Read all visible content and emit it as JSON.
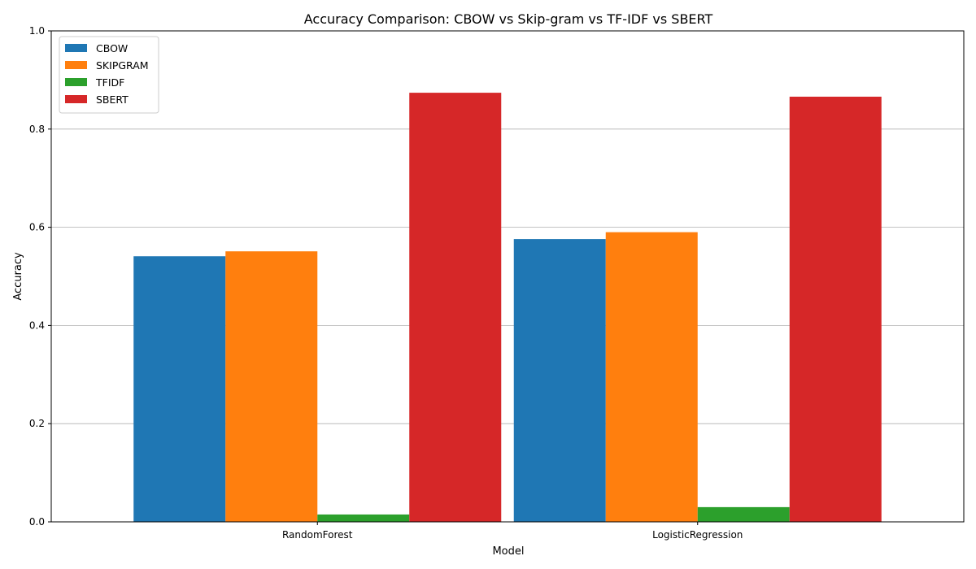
{
  "chart_data": {
    "type": "bar",
    "title": "Accuracy Comparison: CBOW vs Skip-gram vs TF-IDF vs SBERT",
    "xlabel": "Model",
    "ylabel": "Accuracy",
    "categories": [
      "RandomForest",
      "LogisticRegression"
    ],
    "series": [
      {
        "name": "CBOW",
        "color": "#1f77b4",
        "values": [
          0.541,
          0.576
        ]
      },
      {
        "name": "SKIPGRAM",
        "color": "#ff7f0e",
        "values": [
          0.551,
          0.59
        ]
      },
      {
        "name": "TFIDF",
        "color": "#2ca02c",
        "values": [
          0.015,
          0.03
        ]
      },
      {
        "name": "SBERT",
        "color": "#d62728",
        "values": [
          0.874,
          0.866
        ]
      }
    ],
    "ylim": [
      0,
      1
    ],
    "yticks": [
      "0.0",
      "0.2",
      "0.4",
      "0.6",
      "0.8",
      "1.0"
    ],
    "ytick_values": [
      0,
      0.2,
      0.4,
      0.6,
      0.8,
      1.0
    ],
    "grid": "y-axis",
    "legend_position": "top-left"
  }
}
